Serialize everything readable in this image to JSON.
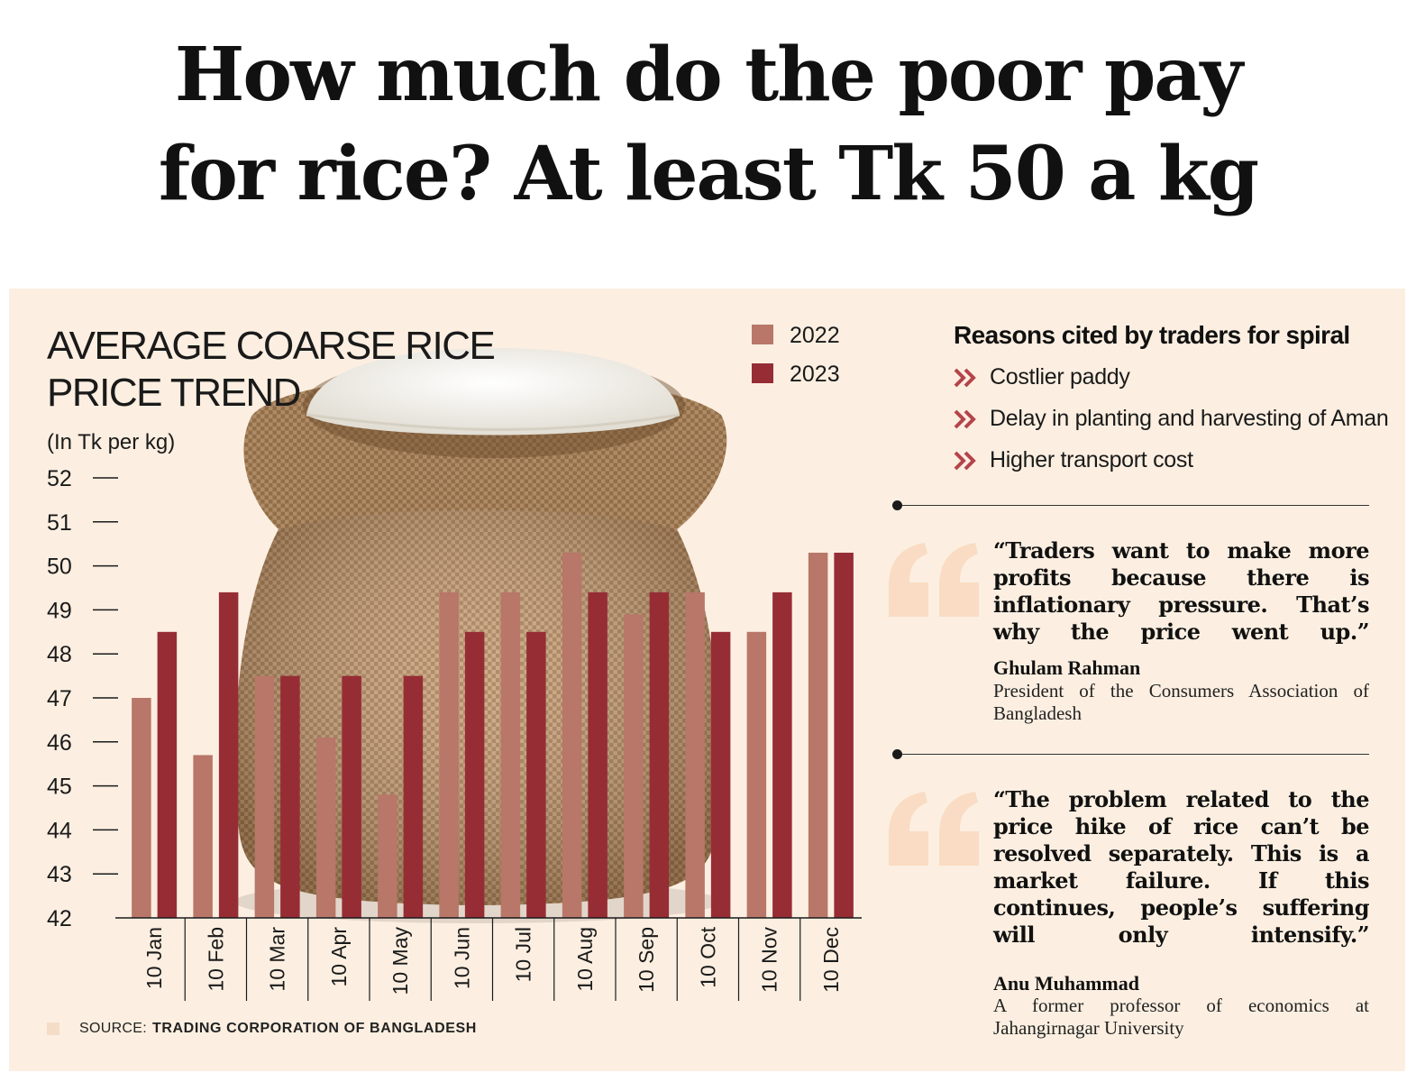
{
  "headline": {
    "line1": "How much do the poor pay",
    "line2": "for rice? At least Tk 50 a kg"
  },
  "chart_data": {
    "type": "bar",
    "title_line1": "AVERAGE COARSE RICE",
    "title_line2": "PRICE TREND",
    "subtitle": "(In Tk per kg)",
    "categories": [
      "10 Jan",
      "10 Feb",
      "10 Mar",
      "10 Apr",
      "10 May",
      "10 Jun",
      "10 Jul",
      "10 Aug",
      "10 Sep",
      "10 Oct",
      "10 Nov",
      "10 Dec"
    ],
    "series": [
      {
        "name": "2022",
        "color": "#b87768",
        "values": [
          47,
          45.7,
          47.5,
          46.1,
          44.8,
          49.4,
          49.4,
          50.3,
          48.9,
          49.4,
          48.5,
          50.3
        ]
      },
      {
        "name": "2023",
        "color": "#962d35",
        "values": [
          48.5,
          49.4,
          47.5,
          47.5,
          47.5,
          48.5,
          48.5,
          49.4,
          49.4,
          48.5,
          49.4,
          50.3
        ]
      }
    ],
    "ylim": [
      42,
      52
    ],
    "yticks": [
      42,
      43,
      44,
      45,
      46,
      47,
      48,
      49,
      50,
      51,
      52
    ],
    "legend_position": "top",
    "grid": false
  },
  "reasons": {
    "title": "Reasons cited by traders for spiral",
    "items": [
      "Costlier paddy",
      "Delay in planting and harvesting of Aman",
      "Higher transport cost"
    ],
    "chevron_color": "#b5444a"
  },
  "quotes": [
    {
      "text": "“Traders want to make more profits because there is inflationary pressure. That’s why the price went up.”",
      "name": "Ghulam Rahman",
      "role": "President of the Consumers Association of Bangladesh"
    },
    {
      "text": "“The problem related to the price hike of rice can’t be resolved separately. This is a market failure. If this continues, people’s suffering will only intensify.”",
      "name": "Anu Muhammad",
      "role": "A former professor of economics at Jahangirnagar University"
    }
  ],
  "source": {
    "prefix": "SOURCE:",
    "name": "TRADING CORPORATION OF BANGLADESH"
  },
  "colors": {
    "panel_background": "#fcefe1",
    "quote_mark": "#f9dcc3",
    "burlap": "#b89067",
    "rice": "#f4f2ec"
  },
  "icons": {
    "reason_bullet": "double-chevron-icon",
    "quote": "quote-mark-icon",
    "illustration": "rice-sack-illustration"
  }
}
